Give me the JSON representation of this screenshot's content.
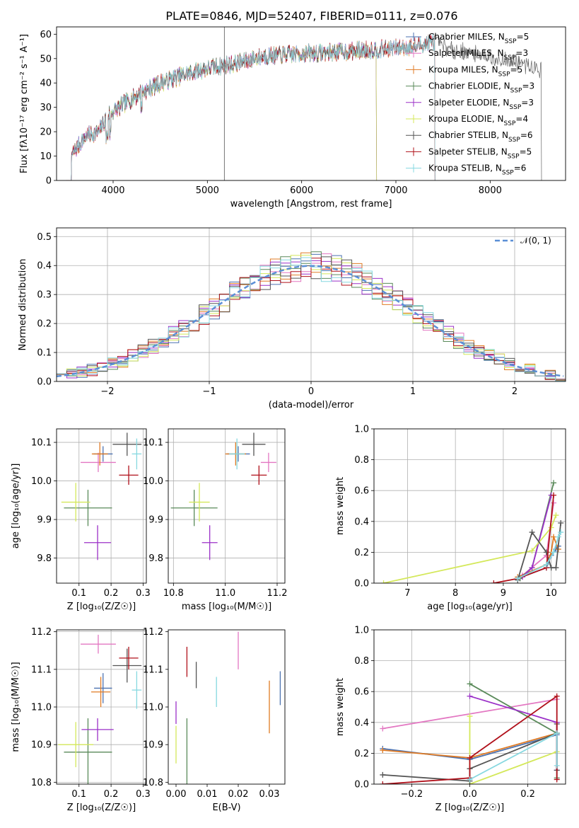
{
  "figure_title": "PLATE=0846, MJD=52407, FIBERID=0111, z=0.076",
  "colors": {
    "Chabrier MILES": "#4c72b0",
    "Salpeter MILES": "#e377c2",
    "Kroupa MILES": "#e07b24",
    "Chabrier ELODIE": "#5a8a5a",
    "Salpeter ELODIE": "#9b30c8",
    "Kroupa ELODIE": "#d4e85a",
    "Chabrier STELIB": "#555555",
    "Salpeter STELIB": "#b0101a",
    "Kroupa STELIB": "#86d8e0",
    "normal": "#5b8fd6"
  },
  "chart_data": [
    {
      "id": "spectrum",
      "type": "line",
      "xlabel": "wavelength [Angstrom, rest frame]",
      "ylabel": "Flux [fλ10⁻¹⁷ erg cm⁻² s⁻¹ A⁻¹]",
      "xlim": [
        3400,
        8800
      ],
      "ylim": [
        0,
        63
      ],
      "xticks": [
        4000,
        5000,
        6000,
        7000,
        8000
      ],
      "yticks": [
        0,
        10,
        20,
        30,
        40,
        50,
        60
      ],
      "legend_position": "right",
      "legend": [
        "Chabrier MILES, N_SSP=5",
        "Salpeter MILES, N_SSP=3",
        "Kroupa MILES, N_SSP=5",
        "Chabrier ELODIE, N_SSP=3",
        "Salpeter ELODIE, N_SSP=3",
        "Kroupa ELODIE, N_SSP=4",
        "Chabrier STELIB, N_SSP=6",
        "Salpeter STELIB, N_SSP=5",
        "Kroupa STELIB, N_SSP=6"
      ],
      "continuum": [
        [
          3550,
          10
        ],
        [
          3700,
          18
        ],
        [
          3850,
          20
        ],
        [
          3950,
          27
        ],
        [
          4100,
          31
        ],
        [
          4300,
          36
        ],
        [
          4500,
          40
        ],
        [
          4800,
          44
        ],
        [
          5000,
          46
        ],
        [
          5300,
          48
        ],
        [
          5600,
          51
        ],
        [
          6000,
          52
        ],
        [
          6500,
          53
        ],
        [
          6900,
          54
        ],
        [
          7200,
          55
        ],
        [
          7400,
          57
        ],
        [
          7600,
          54
        ],
        [
          7800,
          52
        ],
        [
          8100,
          50
        ],
        [
          8400,
          47
        ],
        [
          8550,
          45
        ]
      ],
      "series": [
        {
          "name": "Chabrier MILES",
          "x_range": [
            3550,
            7420
          ]
        },
        {
          "name": "Salpeter MILES",
          "x_range": [
            3550,
            7420
          ]
        },
        {
          "name": "Kroupa MILES",
          "x_range": [
            3550,
            7420
          ]
        },
        {
          "name": "Chabrier ELODIE",
          "x_range": [
            3550,
            6800
          ]
        },
        {
          "name": "Salpeter ELODIE",
          "x_range": [
            3550,
            6800
          ]
        },
        {
          "name": "Kroupa ELODIE",
          "x_range": [
            3900,
            6800
          ]
        },
        {
          "name": "Chabrier STELIB",
          "x_range": [
            3550,
            8550
          ]
        },
        {
          "name": "Salpeter STELIB",
          "x_range": [
            3500,
            7420
          ]
        },
        {
          "name": "Kroupa STELIB",
          "x_range": [
            3550,
            7420
          ]
        }
      ]
    },
    {
      "id": "residuals",
      "type": "line",
      "xlabel": "(data-model)/error",
      "ylabel": "Normed distribution",
      "xlim": [
        -2.5,
        2.5
      ],
      "ylim": [
        0,
        0.53
      ],
      "xticks": [
        -2,
        -1,
        0,
        1,
        2
      ],
      "yticks": [
        0.0,
        0.1,
        0.2,
        0.3,
        0.4,
        0.5
      ],
      "grid": true,
      "legend_position": "top-right",
      "legend": [
        "𝒩(0, 1)"
      ],
      "bin_width": 0.1
    },
    {
      "id": "z_age",
      "type": "scatter",
      "xlabel": "Z [log₁₀(Z/Z☉)]",
      "ylabel": "age  [log₁₀(age/yr)]",
      "xlim": [
        0.03,
        0.31
      ],
      "ylim": [
        9.735,
        10.135
      ],
      "xticks": [
        0.1,
        0.2,
        0.3
      ],
      "yticks": [
        9.8,
        9.9,
        10.0,
        10.1
      ],
      "grid": true,
      "points": [
        {
          "s": "Chabrier MILES",
          "x": 0.175,
          "xe": 0.03,
          "y": 10.07,
          "ye": 0.02
        },
        {
          "s": "Salpeter MILES",
          "x": 0.16,
          "xe": 0.055,
          "y": 10.048,
          "ye": 0.025
        },
        {
          "s": "Kroupa MILES",
          "x": 0.165,
          "xe": 0.025,
          "y": 10.07,
          "ye": 0.03
        },
        {
          "s": "Chabrier ELODIE",
          "x": 0.128,
          "xe": 0.075,
          "y": 9.93,
          "ye": 0.047
        },
        {
          "s": "Salpeter ELODIE",
          "x": 0.158,
          "xe": 0.042,
          "y": 9.84,
          "ye": 0.045
        },
        {
          "s": "Kroupa ELODIE",
          "x": 0.09,
          "xe": 0.045,
          "y": 9.945,
          "ye": 0.05
        },
        {
          "s": "Chabrier STELIB",
          "x": 0.25,
          "xe": 0.045,
          "y": 10.095,
          "ye": 0.03
        },
        {
          "s": "Salpeter STELIB",
          "x": 0.255,
          "xe": 0.03,
          "y": 10.015,
          "ye": 0.025
        },
        {
          "s": "Kroupa STELIB",
          "x": 0.28,
          "xe": 0.015,
          "y": 10.07,
          "ye": 0.04
        }
      ]
    },
    {
      "id": "mass_age",
      "type": "scatter",
      "xlabel": "mass [log₁₀(M/M☉)]",
      "ylabel": "",
      "xlim": [
        10.78,
        11.23
      ],
      "ylim": [
        9.735,
        10.135
      ],
      "xticks": [
        10.8,
        11.0,
        11.2
      ],
      "yticks": [
        9.8,
        9.9,
        10.0,
        10.1
      ],
      "grid": true,
      "points": [
        {
          "s": "Chabrier MILES",
          "x": 11.05,
          "xe": 0.045,
          "y": 10.07,
          "ye": 0.02
        },
        {
          "s": "Salpeter MILES",
          "x": 11.167,
          "xe": 0.03,
          "y": 10.048,
          "ye": 0.025
        },
        {
          "s": "Kroupa MILES",
          "x": 11.04,
          "xe": 0.04,
          "y": 10.07,
          "ye": 0.03
        },
        {
          "s": "Chabrier ELODIE",
          "x": 10.88,
          "xe": 0.09,
          "y": 9.93,
          "ye": 0.047
        },
        {
          "s": "Salpeter ELODIE",
          "x": 10.94,
          "xe": 0.03,
          "y": 9.84,
          "ye": 0.045
        },
        {
          "s": "Kroupa ELODIE",
          "x": 10.9,
          "xe": 0.04,
          "y": 9.945,
          "ye": 0.05
        },
        {
          "s": "Chabrier STELIB",
          "x": 11.11,
          "xe": 0.045,
          "y": 10.095,
          "ye": 0.03
        },
        {
          "s": "Salpeter STELIB",
          "x": 11.13,
          "xe": 0.03,
          "y": 10.015,
          "ye": 0.025
        },
        {
          "s": "Kroupa STELIB",
          "x": 11.045,
          "xe": 0.03,
          "y": 10.07,
          "ye": 0.04
        }
      ]
    },
    {
      "id": "age_weight",
      "type": "line",
      "xlabel": "age  [log₁₀(age/yr)]",
      "ylabel": "mass weight",
      "xlim": [
        6.3,
        10.3
      ],
      "ylim": [
        0,
        1
      ],
      "xticks": [
        7,
        8,
        9,
        10
      ],
      "yticks": [
        0.0,
        0.2,
        0.4,
        0.6,
        0.8,
        1.0
      ],
      "grid": true,
      "series": [
        {
          "name": "Chabrier MILES",
          "x": [
            9.3,
            9.9,
            10.0,
            10.1,
            10.15
          ],
          "y": [
            0.03,
            0.1,
            0.18,
            0.22,
            0.24
          ]
        },
        {
          "name": "Salpeter MILES",
          "x": [
            9.4,
            9.9,
            10.05
          ],
          "y": [
            0.05,
            0.18,
            0.52
          ]
        },
        {
          "name": "Kroupa MILES",
          "x": [
            9.3,
            9.9,
            10.0,
            10.05,
            10.15
          ],
          "y": [
            0.04,
            0.12,
            0.2,
            0.3,
            0.22
          ]
        },
        {
          "name": "Chabrier ELODIE",
          "x": [
            9.35,
            9.6,
            10.05
          ],
          "y": [
            0.03,
            0.1,
            0.65
          ]
        },
        {
          "name": "Salpeter ELODIE",
          "x": [
            9.4,
            9.6,
            10.0
          ],
          "y": [
            0.04,
            0.1,
            0.57
          ]
        },
        {
          "name": "Kroupa ELODIE",
          "x": [
            6.5,
            9.6,
            10.0,
            10.1
          ],
          "y": [
            0.0,
            0.21,
            0.36,
            0.44
          ]
        },
        {
          "name": "Chabrier STELIB",
          "x": [
            9.3,
            9.6,
            9.9,
            10.0,
            10.1,
            10.2
          ],
          "y": [
            0.02,
            0.33,
            0.2,
            0.1,
            0.1,
            0.39
          ]
        },
        {
          "name": "Salpeter STELIB",
          "x": [
            8.8,
            9.3,
            9.9,
            10.05
          ],
          "y": [
            0.0,
            0.03,
            0.1,
            0.57
          ]
        },
        {
          "name": "Kroupa STELIB",
          "x": [
            9.3,
            9.9,
            10.05,
            10.15,
            10.2
          ],
          "y": [
            0.03,
            0.12,
            0.2,
            0.3,
            0.33
          ]
        }
      ]
    },
    {
      "id": "z_mass",
      "type": "scatter",
      "xlabel": "Z [log₁₀(Z/Z☉)]",
      "ylabel": "mass [log₁₀(M/M☉)]",
      "xlim": [
        0.03,
        0.31
      ],
      "ylim": [
        10.795,
        11.205
      ],
      "xticks": [
        0.1,
        0.2,
        0.3
      ],
      "yticks": [
        10.8,
        10.9,
        11.0,
        11.1,
        11.2
      ],
      "grid": true,
      "points": [
        {
          "s": "Chabrier MILES",
          "x": 0.175,
          "xe": 0.028,
          "y": 11.05,
          "ye": 0.04
        },
        {
          "s": "Salpeter MILES",
          "x": 0.16,
          "xe": 0.055,
          "y": 11.167,
          "ye": 0.025
        },
        {
          "s": "Kroupa MILES",
          "x": 0.168,
          "xe": 0.03,
          "y": 11.04,
          "ye": 0.04
        },
        {
          "s": "Chabrier ELODIE",
          "x": 0.128,
          "xe": 0.075,
          "y": 10.88,
          "ye": 0.09
        },
        {
          "s": "Salpeter ELODIE",
          "x": 0.158,
          "xe": 0.05,
          "y": 10.94,
          "ye": 0.03
        },
        {
          "s": "Kroupa ELODIE",
          "x": 0.09,
          "xe": 0.055,
          "y": 10.9,
          "ye": 0.06
        },
        {
          "s": "Chabrier STELIB",
          "x": 0.25,
          "xe": 0.045,
          "y": 11.11,
          "ye": 0.045
        },
        {
          "s": "Salpeter STELIB",
          "x": 0.255,
          "xe": 0.03,
          "y": 11.13,
          "ye": 0.03
        },
        {
          "s": "Kroupa STELIB",
          "x": 0.28,
          "xe": 0.015,
          "y": 11.045,
          "ye": 0.05
        }
      ]
    },
    {
      "id": "ebv_mass",
      "type": "scatter",
      "xlabel": "E(B-V)",
      "ylabel": "",
      "xlim": [
        -0.0025,
        0.035
      ],
      "ylim": [
        10.795,
        11.205
      ],
      "xticks": [
        0.0,
        0.01,
        0.02,
        0.03
      ],
      "xticklabels": [
        "0.00",
        "0.01",
        "0.02",
        "0.03"
      ],
      "yticks": [
        10.8,
        10.9,
        11.0,
        11.1,
        11.2
      ],
      "grid": false,
      "points": [
        {
          "s": "Chabrier MILES",
          "x": 0.0335,
          "xe": 0,
          "y": 11.05,
          "ye": 0.045
        },
        {
          "s": "Salpeter MILES",
          "x": 0.02,
          "xe": 0,
          "y": 11.15,
          "ye": 0.05
        },
        {
          "s": "Kroupa MILES",
          "x": 0.03,
          "xe": 0,
          "y": 11.0,
          "ye": 0.07
        },
        {
          "s": "Chabrier ELODIE",
          "x": 0.0035,
          "xe": 0,
          "y": 10.88,
          "ye": 0.09
        },
        {
          "s": "Salpeter ELODIE",
          "x": 0.0,
          "xe": 0,
          "y": 10.985,
          "ye": 0.03
        },
        {
          "s": "Kroupa ELODIE",
          "x": 0.0,
          "xe": 0,
          "y": 10.9,
          "ye": 0.05
        },
        {
          "s": "Chabrier STELIB",
          "x": 0.0065,
          "xe": 0,
          "y": 11.085,
          "ye": 0.035
        },
        {
          "s": "Salpeter STELIB",
          "x": 0.0035,
          "xe": 0,
          "y": 11.12,
          "ye": 0.04
        },
        {
          "s": "Kroupa STELIB",
          "x": 0.013,
          "xe": 0,
          "y": 11.04,
          "ye": 0.04
        }
      ]
    },
    {
      "id": "z_weight",
      "type": "line",
      "xlabel": "Z [log₁₀(Z/Z☉)]",
      "ylabel": "mass weight",
      "xlim": [
        -0.33,
        0.33
      ],
      "ylim": [
        0,
        1
      ],
      "xticks": [
        -0.2,
        0.0,
        0.2
      ],
      "xticklabels": [
        "−0.2",
        "0.0",
        "0.2"
      ],
      "yticks": [
        0.0,
        0.2,
        0.4,
        0.6,
        0.8,
        1.0
      ],
      "grid": true,
      "series": [
        {
          "name": "Chabrier MILES",
          "x": [
            -0.3,
            0.0,
            0.3
          ],
          "y": [
            0.23,
            0.16,
            0.32
          ]
        },
        {
          "name": "Salpeter MILES",
          "x": [
            -0.3,
            0.3
          ],
          "y": [
            0.36,
            0.55
          ]
        },
        {
          "name": "Kroupa MILES",
          "x": [
            -0.3,
            0.0,
            0.3
          ],
          "y": [
            0.22,
            0.17,
            0.33
          ]
        },
        {
          "name": "Chabrier ELODIE",
          "x": [
            0.0,
            0.3,
            0.3
          ],
          "y": [
            0.65,
            0.33,
            0.04
          ]
        },
        {
          "name": "Salpeter ELODIE",
          "x": [
            0.0,
            0.3,
            0.3
          ],
          "y": [
            0.57,
            0.4,
            0.09
          ]
        },
        {
          "name": "Kroupa ELODIE",
          "x": [
            0.0,
            0.0,
            0.3
          ],
          "y": [
            0.44,
            0.0,
            0.21
          ]
        },
        {
          "name": "Chabrier STELIB",
          "x": [
            -0.3,
            0.0,
            0.0,
            0.3,
            0.3,
            0.3
          ],
          "y": [
            0.06,
            0.02,
            0.1,
            0.33,
            0.09,
            0.39
          ]
        },
        {
          "name": "Salpeter STELIB",
          "x": [
            -0.3,
            0.0,
            0.0,
            0.3,
            0.3
          ],
          "y": [
            0.0,
            0.04,
            0.17,
            0.57,
            0.03
          ]
        },
        {
          "name": "Kroupa STELIB",
          "x": [
            0.0,
            0.3,
            0.3
          ],
          "y": [
            0.03,
            0.33,
            0.12
          ]
        }
      ]
    }
  ]
}
